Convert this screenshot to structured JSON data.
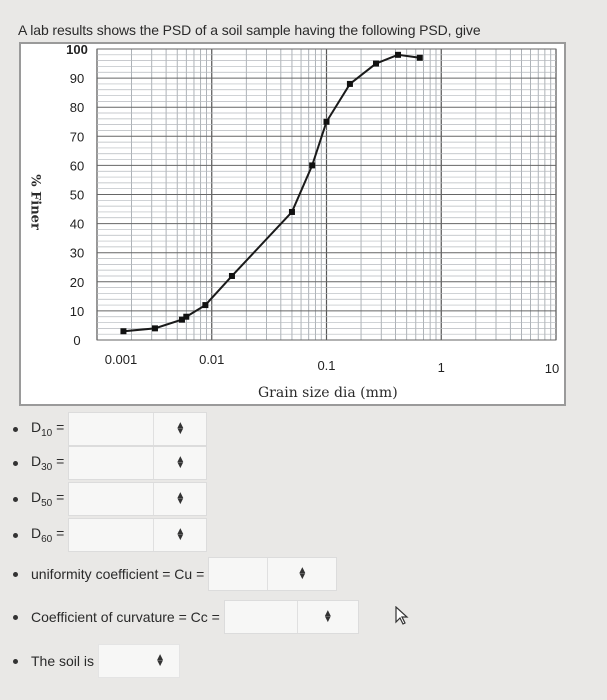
{
  "question": "A lab results shows the PSD of a soil sample having the following PSD, give",
  "chart_data": {
    "type": "line",
    "x_scale": "log",
    "xlim": [
      0.001,
      10
    ],
    "ylim": [
      0,
      100
    ],
    "xlabel": "Grain size dia (mm)",
    "ylabel": "% Finer",
    "x_ticks": [
      "0.001",
      "0.01",
      "0.1",
      "1",
      "10"
    ],
    "y_ticks": [
      "0",
      "10",
      "20",
      "30",
      "40",
      "50",
      "60",
      "70",
      "80",
      "90",
      "100"
    ],
    "grid": true,
    "series": [
      {
        "x": [
          0.0017,
          0.0032,
          0.0055,
          0.006,
          0.0088,
          0.015,
          0.05,
          0.075,
          0.1,
          0.16,
          0.27,
          0.42,
          0.65
        ],
        "y": [
          3,
          4,
          7,
          8,
          12,
          22,
          44,
          60,
          75,
          88,
          95,
          98,
          97
        ]
      }
    ]
  },
  "answers": {
    "d10_label": "D",
    "d10_sub": "10",
    "d30_label": "D",
    "d30_sub": "30",
    "d50_label": "D",
    "d50_sub": "50",
    "d60_label": "D",
    "d60_sub": "60",
    "equals": "=",
    "cu_label": "uniformity coefficient = Cu =",
    "cc_label": "Coefficient of curvature = Cc =",
    "soil_label": "The soil is"
  },
  "icons": {
    "select_arrows": "updown-arrow-icon",
    "cursor": "mouse-pointer-icon"
  }
}
